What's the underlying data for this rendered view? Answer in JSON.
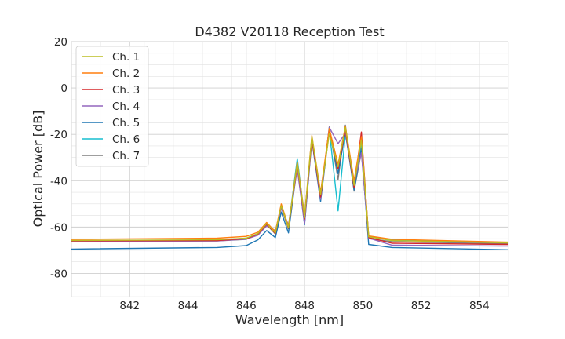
{
  "chart_data": {
    "type": "line",
    "title": "D4382 V20118 Reception Test",
    "xlabel": "Wavelength [nm]",
    "ylabel": "Optical Power [dB]",
    "xlim": [
      840,
      855
    ],
    "ylim": [
      -90,
      20
    ],
    "xticks": [
      842,
      844,
      846,
      848,
      850,
      852,
      854
    ],
    "yticks": [
      -80,
      -60,
      -40,
      -20,
      0,
      20
    ],
    "grid": true,
    "legend_position": "top-left",
    "series": [
      {
        "name": "Ch. 1",
        "color": "#bcbd22",
        "x": [
          840,
          845,
          846.0,
          846.4,
          846.7,
          847.0,
          847.2,
          847.45,
          847.75,
          848.0,
          848.25,
          848.55,
          848.85,
          849.15,
          849.4,
          849.7,
          849.95,
          850.2,
          851,
          855
        ],
        "y": [
          -65.8,
          -65.5,
          -64.8,
          -62.8,
          -58.5,
          -62.5,
          -50.8,
          -60.2,
          -32.5,
          -56.0,
          -20.8,
          -46.0,
          -19.8,
          -34.0,
          -17.0,
          -42.0,
          -22.5,
          -64.2,
          -65.8,
          -66.8
        ]
      },
      {
        "name": "Ch. 2",
        "color": "#ff7f0e",
        "x": [
          840,
          845,
          846.0,
          846.4,
          846.7,
          847.0,
          847.2,
          847.45,
          847.75,
          848.0,
          848.25,
          848.55,
          848.85,
          849.15,
          849.4,
          849.7,
          849.95,
          850.2,
          851,
          855
        ],
        "y": [
          -65.3,
          -64.8,
          -64.0,
          -62.2,
          -58.0,
          -62.0,
          -50.0,
          -59.8,
          -32.0,
          -55.0,
          -20.5,
          -45.0,
          -17.5,
          -33.0,
          -16.5,
          -40.0,
          -21.0,
          -63.8,
          -65.3,
          -66.5
        ]
      },
      {
        "name": "Ch. 3",
        "color": "#d62728",
        "x": [
          840,
          845,
          846.0,
          846.4,
          846.7,
          847.0,
          847.2,
          847.45,
          847.75,
          848.0,
          848.25,
          848.55,
          848.85,
          849.15,
          849.4,
          849.7,
          849.95,
          850.2,
          851,
          855
        ],
        "y": [
          -66.0,
          -65.8,
          -65.0,
          -63.0,
          -58.8,
          -62.8,
          -50.5,
          -60.5,
          -33.0,
          -56.5,
          -22.0,
          -47.0,
          -18.5,
          -35.0,
          -18.0,
          -43.0,
          -19.0,
          -64.5,
          -67.0,
          -67.5
        ]
      },
      {
        "name": "Ch. 4",
        "color": "#9467bd",
        "x": [
          840,
          845,
          846.0,
          846.4,
          846.7,
          847.0,
          847.2,
          847.45,
          847.75,
          848.0,
          848.25,
          848.55,
          848.85,
          849.15,
          849.4,
          849.7,
          849.95,
          850.2,
          851,
          855
        ],
        "y": [
          -66.3,
          -66.0,
          -65.2,
          -63.5,
          -59.5,
          -61.5,
          -52.0,
          -59.0,
          -35.0,
          -58.5,
          -21.5,
          -48.0,
          -17.0,
          -24.0,
          -19.5,
          -41.0,
          -28.0,
          -64.8,
          -67.8,
          -68.2
        ]
      },
      {
        "name": "Ch. 5",
        "color": "#1f77b4",
        "x": [
          840,
          845,
          846.0,
          846.4,
          846.7,
          847.0,
          847.2,
          847.45,
          847.75,
          848.0,
          848.25,
          848.55,
          848.85,
          849.15,
          849.4,
          849.7,
          849.95,
          850.2,
          851,
          855
        ],
        "y": [
          -69.5,
          -68.8,
          -68.0,
          -65.5,
          -61.5,
          -64.5,
          -53.5,
          -62.5,
          -33.5,
          -59.0,
          -22.5,
          -49.0,
          -18.0,
          -37.0,
          -19.0,
          -44.0,
          -26.0,
          -67.5,
          -68.8,
          -69.8
        ]
      },
      {
        "name": "Ch. 6",
        "color": "#17becf",
        "x": [
          840,
          845,
          846.0,
          846.4,
          846.7,
          847.0,
          847.2,
          847.45,
          847.75,
          848.0,
          848.25,
          848.55,
          848.85,
          849.15,
          849.4,
          849.7,
          849.95,
          850.2,
          851,
          855
        ],
        "y": [
          -66.0,
          -65.6,
          -64.8,
          -62.8,
          -58.2,
          -62.3,
          -50.5,
          -60.0,
          -30.5,
          -55.5,
          -22.0,
          -46.5,
          -18.0,
          -53.0,
          -20.0,
          -41.5,
          -24.0,
          -64.0,
          -65.6,
          -66.6
        ]
      },
      {
        "name": "Ch. 7",
        "color": "#7f7f7f",
        "x": [
          840,
          845,
          846.0,
          846.4,
          846.7,
          847.0,
          847.2,
          847.45,
          847.75,
          848.0,
          848.25,
          848.55,
          848.85,
          849.15,
          849.4,
          849.7,
          849.95,
          850.2,
          851,
          855
        ],
        "y": [
          -66.3,
          -66.0,
          -65.3,
          -63.2,
          -59.0,
          -63.0,
          -51.5,
          -60.8,
          -33.5,
          -57.0,
          -21.5,
          -47.5,
          -16.8,
          -39.5,
          -16.0,
          -44.5,
          -27.5,
          -65.0,
          -66.3,
          -67.2
        ]
      }
    ]
  }
}
